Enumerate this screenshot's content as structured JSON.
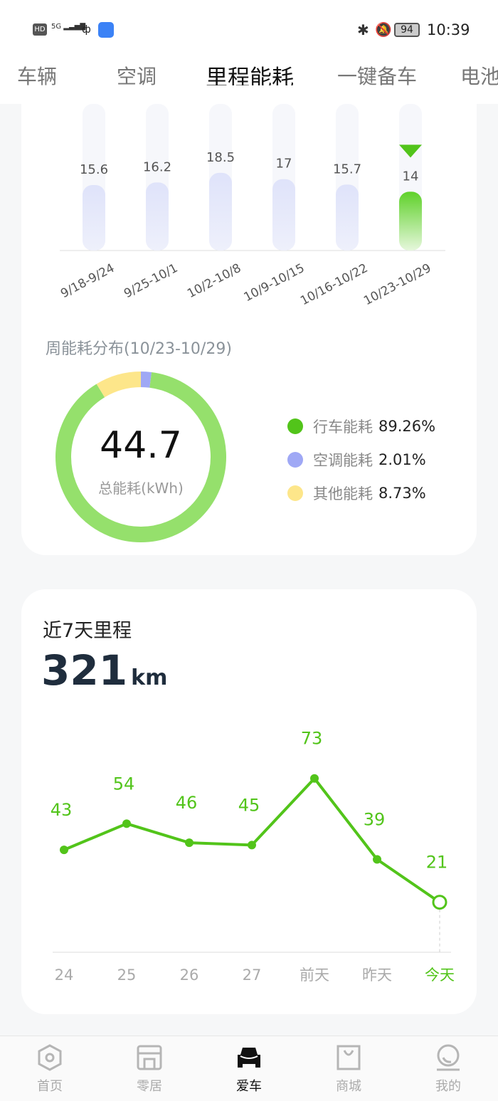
{
  "status_bar": {
    "left_icons": [
      "hd-icon",
      "5g-signal-icon",
      "app-icon",
      "notification-app-icon"
    ],
    "battery": "94",
    "time": "10:39"
  },
  "tabs": [
    {
      "label": "车辆"
    },
    {
      "label": "空调"
    },
    {
      "label": "里程能耗",
      "active": true
    },
    {
      "label": "一键备车"
    },
    {
      "label": "电池"
    }
  ],
  "colors": {
    "accent": "#52c41a",
    "bar_inactive": "#e3e7fa",
    "driving": "#52c41a",
    "ac": "#9fa8f5",
    "other": "#fde68a"
  },
  "chart_data": [
    {
      "type": "bar",
      "categories": [
        "9/18-9/24",
        "9/25-10/1",
        "10/2-10/8",
        "10/9-10/15",
        "10/16-10/22",
        "10/23-10/29"
      ],
      "values": [
        15.6,
        16.2,
        18.5,
        17,
        15.7,
        14
      ],
      "selected": "10/23-10/29",
      "grid": false
    },
    {
      "type": "pie",
      "title": "周能耗分布(10/23-10/29)",
      "center_value": "44.7",
      "center_label": "总能耗(kWh)",
      "slices": [
        {
          "name": "行车能耗",
          "value": 89.26,
          "label": "89.26%"
        },
        {
          "name": "空调能耗",
          "value": 2.01,
          "label": "2.01%"
        },
        {
          "name": "其他能耗",
          "value": 8.73,
          "label": "8.73%"
        }
      ]
    },
    {
      "type": "line",
      "title": "近7天里程",
      "total": "321",
      "unit": "km",
      "categories": [
        "24",
        "25",
        "26",
        "27",
        "前天",
        "昨天",
        "今天"
      ],
      "values": [
        43,
        54,
        46,
        45,
        73,
        39,
        21
      ],
      "grid": false
    }
  ],
  "nav": [
    {
      "label": "首页",
      "icon": "home-hexagon-icon"
    },
    {
      "label": "零居",
      "icon": "store-icon"
    },
    {
      "label": "爱车",
      "icon": "car-icon",
      "active": true
    },
    {
      "label": "商城",
      "icon": "shopping-bag-icon"
    },
    {
      "label": "我的",
      "icon": "profile-icon"
    }
  ]
}
